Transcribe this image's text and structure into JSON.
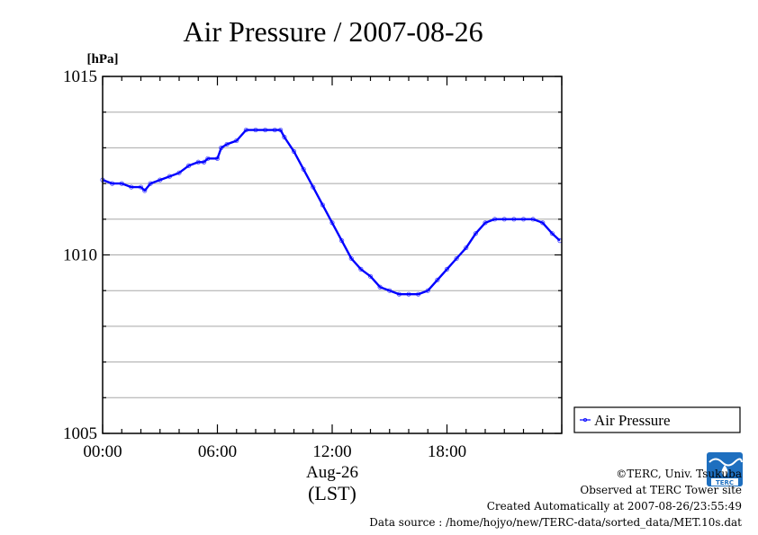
{
  "chart_data": {
    "type": "line",
    "title": "Air Pressure / 2007-08-26",
    "ylabel": "[hPa]",
    "xlabel": "Aug-26",
    "xlabel2": "(LST)",
    "ylim": [
      1005,
      1015
    ],
    "xlim": [
      0,
      24
    ],
    "y_ticks": [
      1005,
      1010,
      1015
    ],
    "y_tick_labels": [
      "1005",
      "1010",
      "1015"
    ],
    "x_ticks": [
      0,
      6,
      12,
      18
    ],
    "x_tick_labels": [
      "00:00",
      "06:00",
      "12:00",
      "18:00"
    ],
    "grid": true,
    "legend_position": "right-bottom",
    "series": [
      {
        "name": "Air Pressure",
        "color": "#0000ff",
        "x": [
          0.0,
          0.5,
          1.0,
          1.5,
          2.0,
          2.2,
          2.5,
          3.0,
          3.5,
          4.0,
          4.5,
          5.0,
          5.3,
          5.5,
          6.0,
          6.2,
          6.5,
          7.0,
          7.5,
          8.0,
          8.5,
          9.0,
          9.3,
          9.5,
          10.0,
          10.5,
          11.0,
          11.5,
          12.0,
          12.5,
          13.0,
          13.5,
          14.0,
          14.5,
          15.0,
          15.5,
          16.0,
          16.5,
          17.0,
          17.5,
          18.0,
          18.5,
          19.0,
          19.5,
          20.0,
          20.5,
          21.0,
          21.5,
          22.0,
          22.5,
          23.0,
          23.5,
          23.9
        ],
        "y": [
          1012.1,
          1012.0,
          1012.0,
          1011.9,
          1011.9,
          1011.8,
          1012.0,
          1012.1,
          1012.2,
          1012.3,
          1012.5,
          1012.6,
          1012.6,
          1012.7,
          1012.7,
          1013.0,
          1013.1,
          1013.2,
          1013.5,
          1013.5,
          1013.5,
          1013.5,
          1013.5,
          1013.3,
          1012.9,
          1012.4,
          1011.9,
          1011.4,
          1010.9,
          1010.4,
          1009.9,
          1009.6,
          1009.4,
          1009.1,
          1009.0,
          1008.9,
          1008.9,
          1008.9,
          1009.0,
          1009.3,
          1009.6,
          1009.9,
          1010.2,
          1010.6,
          1010.9,
          1011.0,
          1011.0,
          1011.0,
          1011.0,
          1011.0,
          1010.9,
          1010.6,
          1010.4
        ]
      }
    ]
  },
  "footer": {
    "copyright": "©TERC, Univ. Tsukuba",
    "observed": "Observed at TERC Tower site",
    "created": "Created Automatically at 2007-08-26/23:55:49",
    "source": "Data source : /home/hojyo/new/TERC-data/sorted_data/MET.10s.dat"
  },
  "logo": {
    "text": "TERC",
    "color": "#1e6fbf"
  }
}
